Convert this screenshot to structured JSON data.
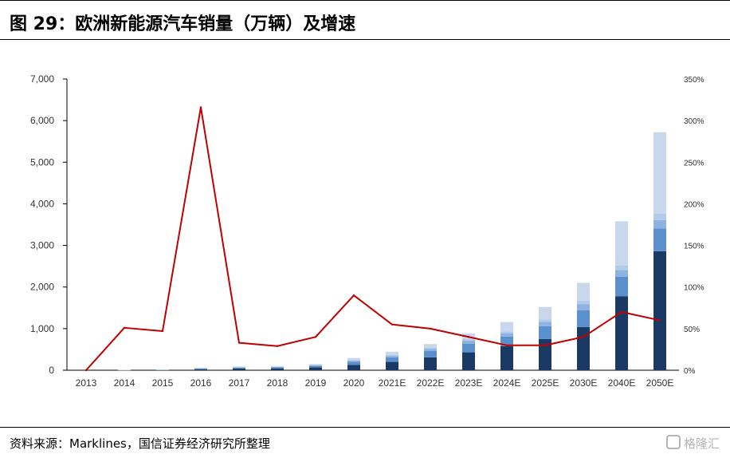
{
  "header": {
    "title": "图 29：欧洲新能源汽车销量（万辆）及增速"
  },
  "footer": {
    "source": "资料来源：Marklines，国信证券经济研究所整理",
    "watermark": "格隆汇"
  },
  "chart_data": {
    "type": "bar",
    "stacked": true,
    "categories": [
      "2013",
      "2014",
      "2015",
      "2016",
      "2017",
      "2018",
      "2019",
      "2020",
      "2021E",
      "2022E",
      "2023E",
      "2024E",
      "2025E",
      "2030E",
      "2040E",
      "2050E"
    ],
    "y_left": {
      "ticks": [
        "0",
        "1,000",
        "2,000",
        "3,000",
        "4,000",
        "5,000",
        "6,000",
        "7,000"
      ],
      "range": [
        0,
        7000
      ]
    },
    "y_right": {
      "ticks": [
        "0%",
        "50%",
        "100%",
        "150%",
        "200%",
        "250%",
        "300%",
        "350%"
      ],
      "range": [
        0,
        350
      ]
    },
    "series": [
      {
        "values": [
          0,
          5,
          8,
          25,
          40,
          45,
          70,
          130,
          200,
          310,
          430,
          580,
          750,
          1040,
          1780,
          2860
        ],
        "color": "#1b3a63"
      },
      {
        "values": [
          0,
          3,
          5,
          15,
          22,
          25,
          38,
          75,
          110,
          150,
          210,
          230,
          310,
          400,
          470,
          550
        ],
        "color": "#5b90cc"
      },
      {
        "values": [
          0,
          1,
          1,
          6,
          8,
          8,
          12,
          24,
          35,
          55,
          75,
          80,
          100,
          150,
          160,
          200
        ],
        "color": "#8fb3de"
      },
      {
        "values": [
          0,
          1,
          1,
          4,
          6,
          6,
          8,
          16,
          25,
          35,
          40,
          45,
          60,
          80,
          110,
          150
        ],
        "color": "#b3cbe8"
      },
      {
        "values": [
          0,
          1,
          1,
          10,
          14,
          16,
          22,
          50,
          75,
          80,
          130,
          225,
          300,
          430,
          1060,
          1960
        ],
        "color": "#c8d7ec"
      }
    ],
    "growth_line": {
      "values": [
        0,
        51,
        47,
        316,
        33,
        29,
        40,
        90,
        55,
        50,
        40,
        30,
        30,
        40,
        70,
        60
      ],
      "color": "#c00000",
      "axis": "right"
    },
    "grid": false
  }
}
